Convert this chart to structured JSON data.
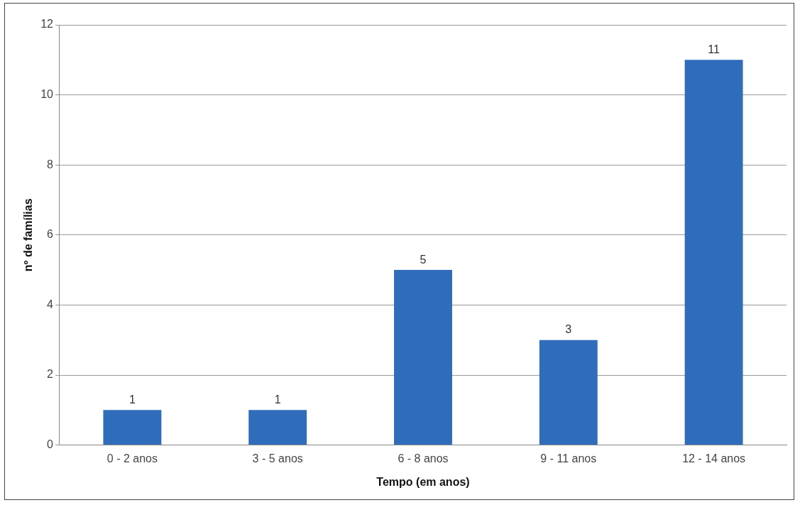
{
  "chart_data": {
    "type": "bar",
    "xlabel": "Tempo (em anos)",
    "ylabel": "nº de famílias",
    "categories": [
      "0 - 2 anos",
      "3 - 5 anos",
      "6 - 8 anos",
      "9 - 11 anos",
      "12 - 14 anos"
    ],
    "values": [
      1,
      1,
      5,
      3,
      11
    ],
    "color": "#2f6dbb",
    "ylim": [
      0,
      12
    ],
    "yticks": [
      0,
      2,
      4,
      6,
      8,
      10,
      12
    ],
    "grid": "y",
    "data_labels": true,
    "legend": false
  }
}
